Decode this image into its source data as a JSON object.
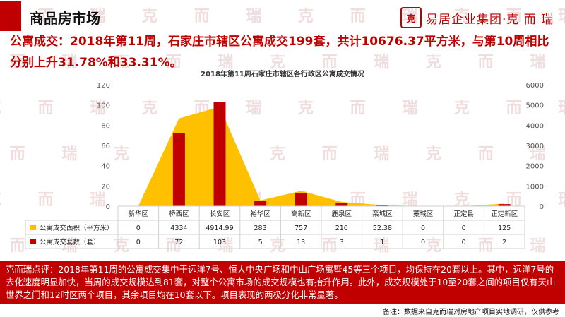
{
  "page": {
    "title": "商品房市场",
    "logo_mark": "克",
    "logo_text": "易居企业集团·克 而 瑞",
    "headline": "公寓成交：2018年第11周，石家庄市辖区公寓成交199套，共计10676.37平方米，与第10周相比分别上升31.78%和33.31%。",
    "watermark_text": "克 而 瑞",
    "comment": "克而瑞点评：2018年第11周的公寓成交集中于远洋7号、恒大中央广场和中山广场寓墅45等三个项目，均保持在20套以上。其中，远洋7号的去化速度明显加快，当周的成交规模达到81套，对整个公寓市场的成交规模也有抬升作用。此外，成交规模处于10至20套之间的项目仅有天山世界之门和12时区两个项目，其余项目均在10套以下。项目表现的两极分化非常显著。",
    "footnote": "备注：数据来自克而瑞对房地产项目实地调研，仅供参考"
  },
  "colors": {
    "accent": "#c00000",
    "area": "#ffc000",
    "bar": "#c00000"
  },
  "chart_data": {
    "type": "bar",
    "title": "2018年第11周石家庄市辖区各行政区公寓成交情况",
    "categories": [
      "新华区",
      "桥西区",
      "长安区",
      "裕华区",
      "高新区",
      "鹿泉区",
      "栾城区",
      "藁城区",
      "正定县",
      "正定新区"
    ],
    "series": [
      {
        "name": "公寓成交面积（平方米）",
        "type": "area",
        "axis": "right",
        "values": [
          0,
          4334,
          4914.99,
          283,
          757,
          210,
          52.38,
          0,
          0,
          125
        ],
        "labels": [
          "0",
          "4334",
          "4914.99",
          "283",
          "757",
          "210",
          "52.38",
          "0",
          "0",
          "125"
        ]
      },
      {
        "name": "公寓成交套数（套）",
        "type": "bar",
        "axis": "left",
        "values": [
          0,
          72,
          103,
          5,
          13,
          3,
          1,
          0,
          0,
          2
        ],
        "labels": [
          "0",
          "72",
          "103",
          "5",
          "13",
          "3",
          "1",
          "0",
          "0",
          "2"
        ]
      }
    ],
    "y_left": {
      "min": 0,
      "max": 120,
      "ticks": [
        "0",
        "20",
        "40",
        "60",
        "80",
        "100",
        "120"
      ]
    },
    "y_right": {
      "min": 0,
      "max": 6000,
      "ticks": [
        "0",
        "1000",
        "2000",
        "3000",
        "4000",
        "5000",
        "6000"
      ]
    },
    "legend": "bottom-left table",
    "grid": false
  }
}
